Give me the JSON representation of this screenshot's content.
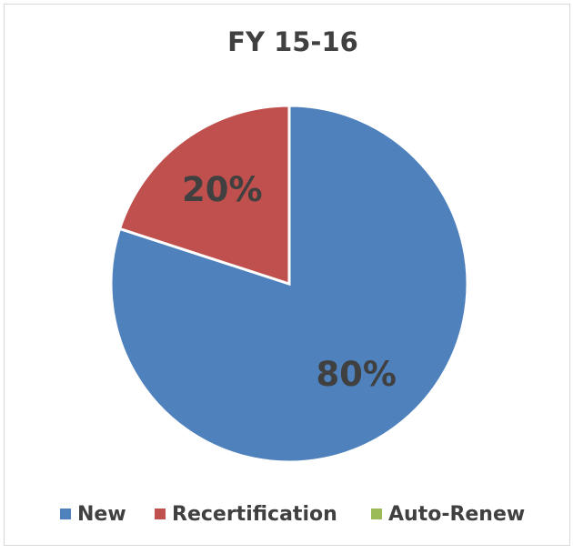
{
  "chart_data": {
    "type": "pie",
    "title": "FY 15-16",
    "categories": [
      "New",
      "Recertification",
      "Auto-Renew"
    ],
    "values": [
      80,
      20,
      0
    ],
    "value_labels": [
      "80%",
      "20%",
      null
    ],
    "colors": [
      "#4f81bd",
      "#c0504d",
      "#9bbb59"
    ],
    "legend": "bottom"
  }
}
